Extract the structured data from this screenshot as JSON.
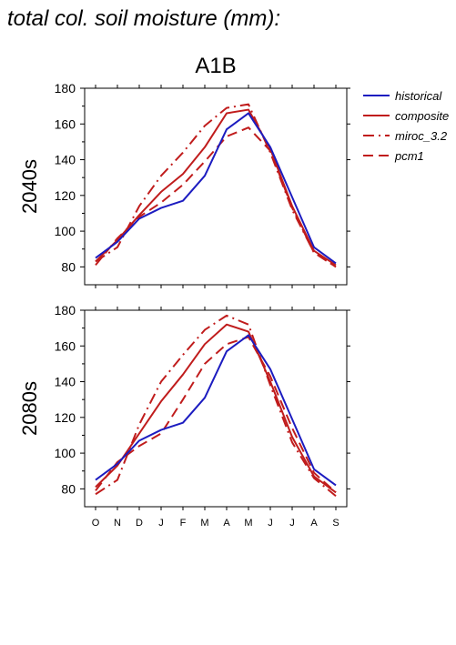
{
  "figure": {
    "title": "total col. soil moisture (mm):",
    "scenario": "A1B"
  },
  "colors": {
    "historical": "#1c1cc0",
    "projection": "#c01c1c",
    "axis": "#000000",
    "background": "#ffffff"
  },
  "legend": {
    "placement": "right",
    "entries": [
      {
        "name": "historical",
        "color": "#1c1cc0",
        "dash": "solid"
      },
      {
        "name": "composite",
        "color": "#c01c1c",
        "dash": "solid"
      },
      {
        "name": "miroc_3.2",
        "color": "#c01c1c",
        "dash": "dashdot"
      },
      {
        "name": "pcm1",
        "color": "#c01c1c",
        "dash": "dash"
      }
    ]
  },
  "chart_data": [
    {
      "type": "line",
      "title": "A1B",
      "ylabel": "2040s",
      "xlabel": "",
      "categories": [
        "O",
        "N",
        "D",
        "J",
        "F",
        "M",
        "A",
        "M",
        "J",
        "J",
        "A",
        "S"
      ],
      "ylim": [
        70,
        180
      ],
      "yticks": [
        80,
        100,
        120,
        140,
        160,
        180
      ],
      "grid": false,
      "series": [
        {
          "name": "historical",
          "color": "#1c1cc0",
          "dash": "solid",
          "values": [
            85,
            94,
            107,
            113,
            117,
            131,
            157,
            166,
            147,
            119,
            91,
            82
          ]
        },
        {
          "name": "composite",
          "color": "#c01c1c",
          "dash": "solid",
          "values": [
            83,
            95,
            109,
            122,
            132,
            147,
            166,
            168,
            146,
            114,
            89,
            81
          ]
        },
        {
          "name": "miroc_3.2",
          "color": "#c01c1c",
          "dash": "dashdot",
          "values": [
            83,
            91,
            114,
            131,
            144,
            159,
            169,
            171,
            144,
            112,
            88,
            80
          ]
        },
        {
          "name": "pcm1",
          "color": "#c01c1c",
          "dash": "dash",
          "values": [
            81,
            96,
            108,
            116,
            126,
            139,
            153,
            158,
            145,
            113,
            88,
            80
          ]
        }
      ]
    },
    {
      "type": "line",
      "title": "",
      "ylabel": "2080s",
      "xlabel": "",
      "categories": [
        "O",
        "N",
        "D",
        "J",
        "F",
        "M",
        "A",
        "M",
        "J",
        "J",
        "A",
        "S"
      ],
      "ylim": [
        70,
        180
      ],
      "yticks": [
        80,
        100,
        120,
        140,
        160,
        180
      ],
      "grid": false,
      "series": [
        {
          "name": "historical",
          "color": "#1c1cc0",
          "dash": "solid",
          "values": [
            85,
            94,
            107,
            113,
            117,
            131,
            157,
            166,
            147,
            119,
            91,
            82
          ]
        },
        {
          "name": "composite",
          "color": "#c01c1c",
          "dash": "solid",
          "values": [
            81,
            93,
            111,
            129,
            144,
            161,
            172,
            168,
            140,
            109,
            87,
            78
          ]
        },
        {
          "name": "miroc_3.2",
          "color": "#c01c1c",
          "dash": "dashdot",
          "values": [
            77,
            85,
            116,
            140,
            155,
            169,
            177,
            172,
            138,
            106,
            86,
            76
          ]
        },
        {
          "name": "pcm1",
          "color": "#c01c1c",
          "dash": "dash",
          "values": [
            79,
            95,
            104,
            111,
            130,
            150,
            161,
            165,
            143,
            114,
            89,
            78
          ]
        }
      ]
    }
  ]
}
